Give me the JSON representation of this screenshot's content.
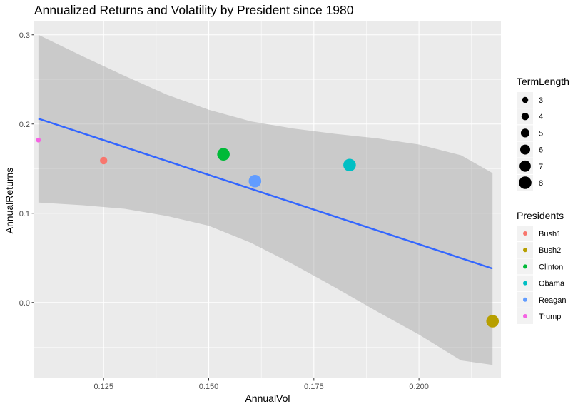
{
  "chart_data": {
    "type": "scatter",
    "title": "Annualized Returns and Volatility by President since 1980",
    "xlabel": "AnnualVol",
    "ylabel": "AnnualReturns",
    "xlim": [
      0.1085,
      0.2195
    ],
    "ylim": [
      -0.085,
      0.315
    ],
    "x_ticks": [
      0.125,
      0.15,
      0.175,
      0.2
    ],
    "x_tick_labels": [
      "0.125",
      "0.150",
      "0.175",
      "0.200"
    ],
    "y_ticks": [
      0.0,
      0.1,
      0.2,
      0.3
    ],
    "y_tick_labels": [
      "0.0",
      "0.1",
      "0.2",
      "0.3"
    ],
    "grid": true,
    "background": "#ebebeb",
    "points": [
      {
        "president": "Bush1",
        "x": 0.125,
        "y": 0.159,
        "term_length": 4
      },
      {
        "president": "Bush2",
        "x": 0.2175,
        "y": -0.021,
        "term_length": 8
      },
      {
        "president": "Clinton",
        "x": 0.1535,
        "y": 0.166,
        "term_length": 8
      },
      {
        "president": "Obama",
        "x": 0.1835,
        "y": 0.154,
        "term_length": 8
      },
      {
        "president": "Reagan",
        "x": 0.161,
        "y": 0.136,
        "term_length": 8
      },
      {
        "president": "Trump",
        "x": 0.1095,
        "y": 0.182,
        "term_length": 2
      }
    ],
    "trend_line": {
      "method": "lm",
      "color": "#3366ff",
      "x": [
        0.1095,
        0.2175
      ],
      "y": [
        0.206,
        0.038
      ],
      "ribbon_color": "#999999",
      "ribbon": [
        {
          "x": 0.1095,
          "lo": 0.112,
          "hi": 0.3
        },
        {
          "x": 0.12,
          "lo": 0.109,
          "hi": 0.276
        },
        {
          "x": 0.13,
          "lo": 0.105,
          "hi": 0.254
        },
        {
          "x": 0.14,
          "lo": 0.097,
          "hi": 0.233
        },
        {
          "x": 0.15,
          "lo": 0.086,
          "hi": 0.216
        },
        {
          "x": 0.16,
          "lo": 0.067,
          "hi": 0.203
        },
        {
          "x": 0.17,
          "lo": 0.043,
          "hi": 0.195
        },
        {
          "x": 0.18,
          "lo": 0.017,
          "hi": 0.189
        },
        {
          "x": 0.19,
          "lo": -0.01,
          "hi": 0.184
        },
        {
          "x": 0.2,
          "lo": -0.036,
          "hi": 0.177
        },
        {
          "x": 0.21,
          "lo": -0.065,
          "hi": 0.165
        },
        {
          "x": 0.2175,
          "lo": -0.07,
          "hi": 0.145
        }
      ]
    },
    "legend_size": {
      "title": "TermLength",
      "position": "right",
      "entries": [
        {
          "label": "3",
          "value": 3
        },
        {
          "label": "4",
          "value": 4
        },
        {
          "label": "5",
          "value": 5
        },
        {
          "label": "6",
          "value": 6
        },
        {
          "label": "7",
          "value": 7
        },
        {
          "label": "8",
          "value": 8
        }
      ]
    },
    "legend_color": {
      "title": "Presidents",
      "position": "right",
      "entries": [
        {
          "label": "Bush1",
          "color": "#f8766d"
        },
        {
          "label": "Bush2",
          "color": "#b79f00"
        },
        {
          "label": "Clinton",
          "color": "#00ba38"
        },
        {
          "label": "Obama",
          "color": "#00bfc4"
        },
        {
          "label": "Reagan",
          "color": "#619cff"
        },
        {
          "label": "Trump",
          "color": "#f564e3"
        }
      ]
    }
  }
}
